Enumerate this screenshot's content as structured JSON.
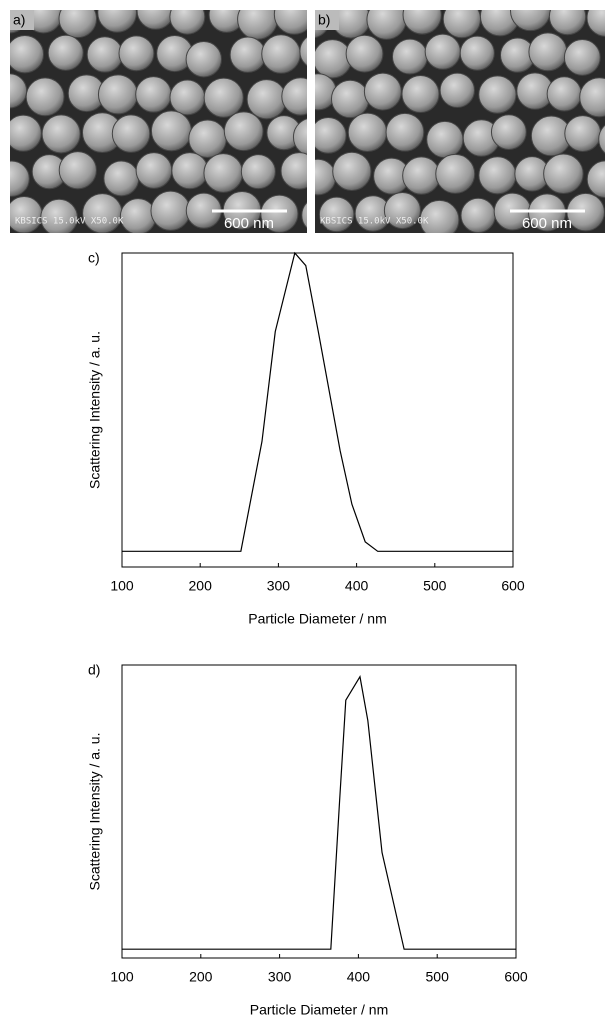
{
  "images": [
    {
      "label": "a)",
      "scale_bar": "600 nm",
      "info": "KBSICS 15.0kV X50.0K"
    },
    {
      "label": "b)",
      "scale_bar": "600 nm",
      "info": "KBSICS 15.0kV X50.0K"
    }
  ],
  "chart_data": [
    {
      "type": "line",
      "panel_label": "c)",
      "xlabel": "Particle Diameter / nm",
      "ylabel": "Scattering Intensity / a. u.",
      "x": [
        100,
        252,
        279,
        296,
        310,
        321,
        335,
        351,
        379,
        394,
        411,
        427,
        600
      ],
      "series": [
        {
          "color": "#000000",
          "values": [
            5,
            5,
            40,
            75,
            89,
            100,
            96,
            75,
            37,
            20,
            8,
            5,
            5
          ]
        }
      ],
      "xlim": [
        100,
        600
      ],
      "xticks": [
        100,
        200,
        300,
        400,
        500,
        600
      ],
      "ylim": [
        0,
        100
      ]
    },
    {
      "type": "line",
      "panel_label": "d)",
      "xlabel": "Particle Diameter / nm",
      "ylabel": "Scattering Intensity / a. u.",
      "x": [
        100,
        365,
        376,
        384,
        402,
        412,
        430,
        458,
        600
      ],
      "series": [
        {
          "color": "#000000",
          "values": [
            3,
            3,
            53,
            88,
            96,
            81,
            36,
            3,
            3
          ]
        }
      ],
      "xlim": [
        100,
        600
      ],
      "xticks": [
        100,
        200,
        300,
        400,
        500,
        600
      ],
      "ylim": [
        0,
        100
      ]
    }
  ]
}
